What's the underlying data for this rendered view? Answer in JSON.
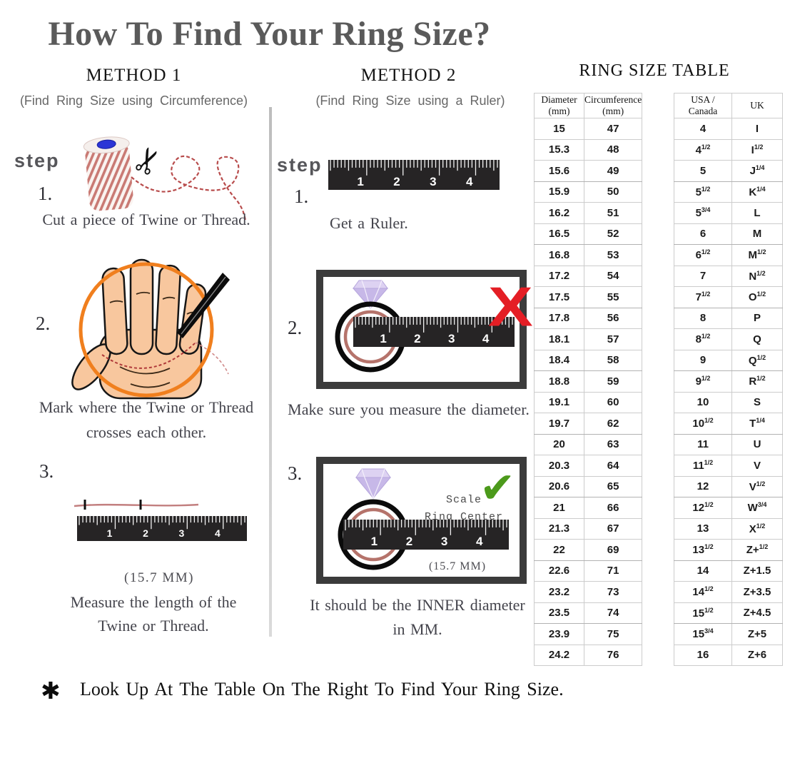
{
  "title": "How To Find Your Ring Size?",
  "method1": {
    "heading": "METHOD 1",
    "subheading": "(Find Ring Size using Circumference)",
    "step_label": "step",
    "steps": [
      {
        "num": "1.",
        "caption": "Cut a piece of Twine or Thread."
      },
      {
        "num": "2.",
        "caption_line1": "Mark where the Twine or Thread",
        "caption_line2": "crosses each other."
      },
      {
        "num": "3.",
        "measure": "(15.7 MM)",
        "caption_line1": "Measure the length of the",
        "caption_line2": "Twine or Thread."
      }
    ]
  },
  "method2": {
    "heading": "METHOD 2",
    "subheading": "(Find Ring Size using a Ruler)",
    "step_label": "step",
    "steps": [
      {
        "num": "1.",
        "caption": "Get a Ruler."
      },
      {
        "num": "2.",
        "caption": "Make sure you measure the diameter."
      },
      {
        "num": "3.",
        "scale_line1": "Scale",
        "scale_line2": "Ring Center",
        "measure": "(15.7 MM)",
        "caption_line1": "It should be the INNER diameter",
        "caption_line2": "in MM."
      }
    ]
  },
  "icons": {
    "scissors": "✂",
    "x_mark": "X",
    "check": "✔",
    "asterisk": "✱"
  },
  "ruler": {
    "labels": [
      "1",
      "2",
      "3",
      "4"
    ]
  },
  "table": {
    "title": "RING SIZE TABLE",
    "left": {
      "header": {
        "col1_line1": "Diameter",
        "col1_line2": "(mm)",
        "col2_line1": "Circumference",
        "col2_line2": "(mm)"
      }
    },
    "right": {
      "header": {
        "col1_line1": "USA /",
        "col1_line2": "Canada",
        "col2_line1": "UK"
      }
    },
    "rows": [
      {
        "d": "15",
        "c": "47",
        "us": "4",
        "uk": "I"
      },
      {
        "d": "15.3",
        "c": "48",
        "us": "4^1/2",
        "uk": "I^1/2"
      },
      {
        "d": "15.6",
        "c": "49",
        "us": "5",
        "uk": "J^1/4"
      },
      {
        "d": "15.9",
        "c": "50",
        "us": "5^1/2",
        "uk": "K^1/4"
      },
      {
        "d": "16.2",
        "c": "51",
        "us": "5^3/4",
        "uk": "L"
      },
      {
        "d": "16.5",
        "c": "52",
        "us": "6",
        "uk": "M"
      },
      {
        "d": "16.8",
        "c": "53",
        "us": "6^1/2",
        "uk": "M^1/2"
      },
      {
        "d": "17.2",
        "c": "54",
        "us": "7",
        "uk": "N^1/2"
      },
      {
        "d": "17.5",
        "c": "55",
        "us": "7^1/2",
        "uk": "O^1/2"
      },
      {
        "d": "17.8",
        "c": "56",
        "us": "8",
        "uk": "P"
      },
      {
        "d": "18.1",
        "c": "57",
        "us": "8^1/2",
        "uk": "Q"
      },
      {
        "d": "18.4",
        "c": "58",
        "us": "9",
        "uk": "Q^1/2"
      },
      {
        "d": "18.8",
        "c": "59",
        "us": "9^1/2",
        "uk": "R^1/2"
      },
      {
        "d": "19.1",
        "c": "60",
        "us": "10",
        "uk": "S"
      },
      {
        "d": "19.7",
        "c": "62",
        "us": "10^1/2",
        "uk": "T^1/4"
      },
      {
        "d": "20",
        "c": "63",
        "us": "11",
        "uk": "U"
      },
      {
        "d": "20.3",
        "c": "64",
        "us": "11^1/2",
        "uk": "V"
      },
      {
        "d": "20.6",
        "c": "65",
        "us": "12",
        "uk": "V^1/2"
      },
      {
        "d": "21",
        "c": "66",
        "us": "12^1/2",
        "uk": "W^3/4"
      },
      {
        "d": "21.3",
        "c": "67",
        "us": "13",
        "uk": "X^1/2"
      },
      {
        "d": "22",
        "c": "69",
        "us": "13^1/2",
        "uk": "Z+^1/2"
      },
      {
        "d": "22.6",
        "c": "71",
        "us": "14",
        "uk": "Z+1.5"
      },
      {
        "d": "23.2",
        "c": "73",
        "us": "14^1/2",
        "uk": "Z+3.5"
      },
      {
        "d": "23.5",
        "c": "74",
        "us": "15^1/2",
        "uk": "Z+4.5"
      },
      {
        "d": "23.9",
        "c": "75",
        "us": "15^3/4",
        "uk": "Z+5"
      },
      {
        "d": "24.2",
        "c": "76",
        "us": "16",
        "uk": "Z+6"
      }
    ]
  },
  "footnote": {
    "text": "Look Up At The Table On The Right To Find Your Ring Size."
  },
  "colors": {
    "accent_orange": "#f07f1e",
    "wrong_red": "#e41e25",
    "right_green": "#4c9a1b",
    "ring_inner": "#b5736b",
    "diamond": "#c7b8e8"
  }
}
